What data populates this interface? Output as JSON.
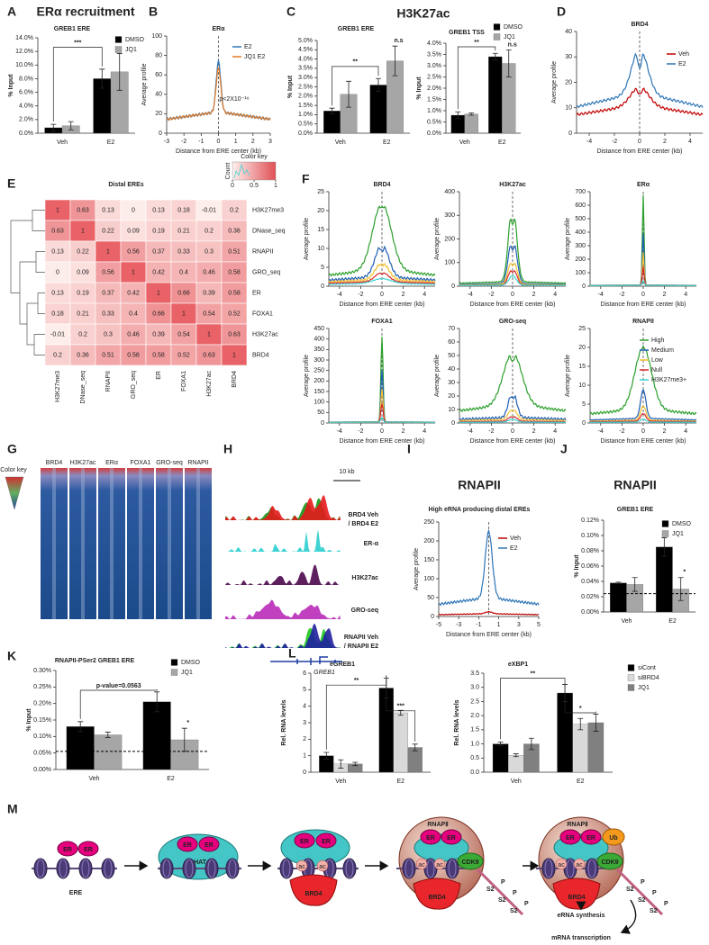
{
  "panel_letters": [
    "A",
    "B",
    "C",
    "D",
    "E",
    "F",
    "G",
    "H",
    "I",
    "J",
    "K",
    "L",
    "M"
  ],
  "bar_charts": [
    {
      "heading": "ERα recruitment",
      "subtitle": "GREB1 ERE",
      "ylabel": "% Input",
      "categories": [
        "Veh",
        "E2"
      ],
      "ylim": [
        0,
        14
      ],
      "yticks": [
        {
          "value": 0,
          "label": "0.0%"
        },
        {
          "value": 2,
          "label": "2.0%"
        },
        {
          "value": 4,
          "label": "4.0%"
        },
        {
          "value": 6,
          "label": "6.0%"
        },
        {
          "value": 8,
          "label": "8.0%"
        },
        {
          "value": 10,
          "label": "10.0%"
        },
        {
          "value": 12,
          "label": "12.0%"
        },
        {
          "value": 14,
          "label": "14.0%"
        }
      ],
      "series": [
        {
          "name": "DMSO",
          "color": "#000000",
          "values": [
            0.8,
            8.0
          ],
          "errors": [
            0.5,
            1.4
          ]
        },
        {
          "name": "JQ1",
          "color": "#a6a6a6",
          "values": [
            1.1,
            9.0
          ],
          "errors": [
            0.6,
            2.7
          ]
        }
      ],
      "annotations": [
        "***"
      ],
      "legend": "right"
    },
    {
      "heading": "H3K27ac",
      "subtitle": "GREB1 ERE",
      "ylabel": "% Input",
      "categories": [
        "Veh",
        "E2"
      ],
      "ylim": [
        0,
        5
      ],
      "yticks": [
        {
          "value": 0,
          "label": "0.0%"
        },
        {
          "value": 0.5,
          "label": "0.5%"
        },
        {
          "value": 1,
          "label": "1.0%"
        },
        {
          "value": 1.5,
          "label": "1.5%"
        },
        {
          "value": 2,
          "label": "2.0%"
        },
        {
          "value": 2.5,
          "label": "2.5%"
        },
        {
          "value": 3,
          "label": "3.0%"
        },
        {
          "value": 3.5,
          "label": "3.5%"
        },
        {
          "value": 4,
          "label": "4.0%"
        },
        {
          "value": 4.5,
          "label": "4.5%"
        },
        {
          "value": 5,
          "label": "5.0%"
        }
      ],
      "series": [
        {
          "name": "DMSO",
          "color": "#000000",
          "values": [
            1.2,
            2.6
          ],
          "errors": [
            0.15,
            0.35
          ]
        },
        {
          "name": "JQ1",
          "color": "#a6a6a6",
          "values": [
            2.1,
            3.9
          ],
          "errors": [
            0.7,
            0.8
          ]
        }
      ],
      "annotations": [
        "**",
        "n.s"
      ]
    },
    {
      "subtitle": "GREB1 TSS",
      "ylabel": "% Input",
      "categories": [
        "Veh",
        "E2"
      ],
      "ylim": [
        0,
        4
      ],
      "yticks": [
        {
          "value": 0,
          "label": "0.0%"
        },
        {
          "value": 0.5,
          "label": "0.5%"
        },
        {
          "value": 1,
          "label": "1.0%"
        },
        {
          "value": 1.5,
          "label": "1.5%"
        },
        {
          "value": 2,
          "label": "2.0%"
        },
        {
          "value": 2.5,
          "label": "2.5%"
        },
        {
          "value": 3,
          "label": "3.0%"
        },
        {
          "value": 3.5,
          "label": "3.5%"
        },
        {
          "value": 4,
          "label": "4.0%"
        }
      ],
      "series": [
        {
          "name": "DMSO",
          "color": "#000000",
          "values": [
            0.8,
            3.4
          ],
          "errors": [
            0.15,
            0.15
          ]
        },
        {
          "name": "JQ1",
          "color": "#a6a6a6",
          "values": [
            0.85,
            3.1
          ],
          "errors": [
            0.05,
            0.6
          ]
        }
      ],
      "annotations": [
        "**",
        "n.s"
      ],
      "legend": "right"
    },
    {
      "heading": "RNAPII",
      "subtitle": "GREB1 ERE",
      "ylabel": "% Input",
      "categories": [
        "Veh",
        "E2"
      ],
      "ylim": [
        0,
        0.12
      ],
      "yticks": [
        {
          "value": 0,
          "label": "0.00%"
        },
        {
          "value": 0.02,
          "label": "0.02%"
        },
        {
          "value": 0.04,
          "label": "0.04%"
        },
        {
          "value": 0.06,
          "label": "0.06%"
        },
        {
          "value": 0.08,
          "label": "0.08%"
        },
        {
          "value": 0.1,
          "label": "0.10%"
        },
        {
          "value": 0.12,
          "label": "0.12%"
        }
      ],
      "series": [
        {
          "name": "DMSO",
          "color": "#000000",
          "values": [
            0.038,
            0.085
          ],
          "errors": [
            0.001,
            0.012
          ]
        },
        {
          "name": "JQ1",
          "color": "#a6a6a6",
          "values": [
            0.036,
            0.03
          ],
          "errors": [
            0.009,
            0.015
          ]
        }
      ],
      "baseline": 0.024,
      "annotations": [
        "*"
      ],
      "legend": "right"
    },
    {
      "subtitle": "RNAPII-PSer2 GREB1 ERE",
      "ylabel": "% Input",
      "categories": [
        "Veh",
        "E2"
      ],
      "ylim": [
        0,
        0.3
      ],
      "yticks": [
        {
          "value": 0,
          "label": "0.00%"
        },
        {
          "value": 0.05,
          "label": "0.05%"
        },
        {
          "value": 0.1,
          "label": "0.10%"
        },
        {
          "value": 0.15,
          "label": "0.15%"
        },
        {
          "value": 0.2,
          "label": "0.20%"
        },
        {
          "value": 0.25,
          "label": "0.25%"
        },
        {
          "value": 0.3,
          "label": "0.30%"
        }
      ],
      "series": [
        {
          "name": "DMSO",
          "color": "#000000",
          "values": [
            0.13,
            0.205
          ],
          "errors": [
            0.015,
            0.03
          ]
        },
        {
          "name": "JQ1",
          "color": "#a6a6a6",
          "values": [
            0.105,
            0.09
          ],
          "errors": [
            0.008,
            0.035
          ]
        }
      ],
      "baseline": 0.055,
      "annotations": [
        "p-value=0.0563",
        "*"
      ],
      "legend": "right"
    },
    {
      "subtitle": "eGREB1",
      "ylabel": "Rel. RNA levels",
      "categories": [
        "Veh",
        "E2"
      ],
      "ylim": [
        0,
        6
      ],
      "yticks": [
        0,
        1,
        2,
        3,
        4,
        5,
        6
      ],
      "series": [
        {
          "name": "siCont",
          "color": "#000000",
          "values": [
            1.0,
            5.1
          ],
          "errors": [
            0.2,
            0.6
          ]
        },
        {
          "name": "siBRD4",
          "color": "#d9d9d9",
          "values": [
            0.5,
            3.6
          ],
          "errors": [
            0.25,
            0.15
          ]
        },
        {
          "name": "JQ1",
          "color": "#808080",
          "values": [
            0.5,
            1.5
          ],
          "errors": [
            0.1,
            0.2
          ]
        }
      ],
      "annotations": [
        "**",
        "***"
      ]
    },
    {
      "subtitle": "eXBP1",
      "ylabel": "Rel. RNA levels",
      "categories": [
        "Veh",
        "E2"
      ],
      "ylim": [
        0,
        3.5
      ],
      "yticks": [
        {
          "value": 0,
          "label": "0.0"
        },
        {
          "value": 0.5,
          "label": "0.5"
        },
        {
          "value": 1,
          "label": "1.0"
        },
        {
          "value": 1.5,
          "label": "1.5"
        },
        {
          "value": 2,
          "label": "2.0"
        },
        {
          "value": 2.5,
          "label": "2.5"
        },
        {
          "value": 3,
          "label": "3.0"
        },
        {
          "value": 3.5,
          "label": "3.5"
        }
      ],
      "series": [
        {
          "name": "siCont",
          "color": "#000000",
          "values": [
            1.0,
            2.8
          ],
          "errors": [
            0.07,
            0.3
          ]
        },
        {
          "name": "siBRD4",
          "color": "#d9d9d9",
          "values": [
            0.6,
            1.7
          ],
          "errors": [
            0.05,
            0.2
          ]
        },
        {
          "name": "JQ1",
          "color": "#808080",
          "values": [
            1.0,
            1.75
          ],
          "errors": [
            0.2,
            0.3
          ]
        }
      ],
      "annotations": [
        "**",
        "*"
      ],
      "legend": "right"
    }
  ],
  "profiles": [
    {
      "title": "ERα",
      "ylabel": "Average profile",
      "xlabel": "Distance from ERE center (kb)",
      "xlim": [
        -3,
        3
      ],
      "xticks": [
        -3,
        -2,
        -1,
        0,
        1,
        2,
        3
      ],
      "ylim": [
        0,
        100
      ],
      "yticks": [
        0,
        20,
        40,
        60,
        80,
        100
      ],
      "series": [
        {
          "name": "E2",
          "color": "#2e75b6"
        },
        {
          "name": "JQ1 E2",
          "color": "#e07b28"
        }
      ],
      "annotation": "p<2X10⁻¹⁶",
      "legend": "right"
    },
    {
      "title": "BRD4",
      "ylabel": "Average profile",
      "xlabel": "Distance from ERE center (kb)",
      "xlim": [
        -5,
        5
      ],
      "xticks": [
        -4,
        -2,
        0,
        2,
        4
      ],
      "ylim": [
        0,
        40
      ],
      "yticks": [
        0,
        10,
        20,
        30,
        40
      ],
      "series": [
        {
          "name": "Veh",
          "color": "#c00000"
        },
        {
          "name": "E2",
          "color": "#2e75b6"
        }
      ],
      "legend": "right"
    },
    {
      "title": "BRD4",
      "ylabel": "Average profile",
      "xlabel": "Distance from ERE center (kb)",
      "xlim": [
        -5,
        5
      ],
      "xticks": [
        -4,
        -2,
        0,
        2,
        4
      ],
      "ylim": [
        0,
        25
      ],
      "yticks": [
        0,
        5,
        10,
        15,
        20,
        25
      ]
    },
    {
      "title": "H3K27ac",
      "ylabel": "Average profile",
      "xlabel": "Distance from ERE center (kb)",
      "xlim": [
        -5,
        5
      ],
      "xticks": [
        -4,
        -2,
        0,
        2,
        4
      ],
      "ylim": [
        0,
        400
      ],
      "yticks": [
        0,
        100,
        200,
        300,
        400
      ]
    },
    {
      "title": "ERα",
      "ylabel": "Average profile",
      "xlabel": "Distance from ERE center (kb)",
      "xlim": [
        -5,
        5
      ],
      "xticks": [
        -4,
        -2,
        0,
        2,
        4
      ],
      "ylim": [
        0,
        700
      ],
      "yticks": [
        0,
        100,
        200,
        300,
        400,
        500,
        600,
        700
      ]
    },
    {
      "title": "FOXA1",
      "ylabel": "Average profile",
      "xlabel": "Distance from ERE center (kb)",
      "xlim": [
        -5,
        5
      ],
      "xticks": [
        -4,
        -2,
        0,
        2,
        4
      ],
      "ylim": [
        0,
        450
      ],
      "yticks": [
        0,
        50,
        100,
        150,
        200,
        250,
        300,
        350,
        400,
        450
      ]
    },
    {
      "title": "GRO-seq",
      "ylabel": "Average profile",
      "xlabel": "Distance from ERE center (kb)",
      "xlim": [
        -5,
        5
      ],
      "xticks": [
        -4,
        -2,
        0,
        2,
        4
      ],
      "ylim": [
        0,
        70
      ],
      "yticks": [
        0,
        10,
        20,
        30,
        40,
        50,
        60,
        70
      ]
    },
    {
      "title": "RNAPII",
      "ylabel": "Average profile",
      "xlabel": "Distance from ERE center (kb)",
      "xlim": [
        -5,
        5
      ],
      "xticks": [
        -4,
        -2,
        0,
        2,
        4
      ],
      "ylim": [
        0,
        25
      ],
      "yticks": [
        0,
        5,
        10,
        15,
        20,
        25
      ],
      "series": [
        {
          "name": "High",
          "color": "#2ca02c"
        },
        {
          "name": "Medium",
          "color": "#1f5fb4"
        },
        {
          "name": "Low",
          "color": "#f2c12e"
        },
        {
          "name": "Null",
          "color": "#d62728"
        },
        {
          "name": "H3K27me3+",
          "color": "#3fd3d3"
        }
      ],
      "legend": "right"
    },
    {
      "heading": "RNAPII",
      "title": "High eRNA producing distal EREs",
      "ylabel": "Average profile",
      "xlabel": "Distance from ERE center (kb)",
      "xlim": [
        -5,
        5
      ],
      "xticks": [
        -5,
        -3,
        -1,
        1,
        3,
        5
      ],
      "ylim": [
        0,
        250
      ],
      "yticks": [
        0,
        50,
        100,
        150,
        200,
        250
      ],
      "series": [
        {
          "name": "Veh",
          "color": "#c00000"
        },
        {
          "name": "E2",
          "color": "#2e75b6"
        }
      ],
      "legend": "right"
    }
  ],
  "heatmap": {
    "title": "Distal EREs",
    "labels": [
      "H3K27me3",
      "DNase_seq",
      "RNAPII",
      "GRO_seq",
      "ER",
      "FOXA1",
      "H3K27ac",
      "BRD4"
    ],
    "matrix": [
      [
        1,
        0.63,
        0.13,
        0,
        0.13,
        0.18,
        -0.01,
        0.2
      ],
      [
        0.63,
        1,
        0.22,
        0.09,
        0.19,
        0.21,
        0.2,
        0.36
      ],
      [
        0.13,
        0.22,
        1,
        0.56,
        0.37,
        0.33,
        0.3,
        0.51
      ],
      [
        0,
        0.09,
        0.56,
        1,
        0.42,
        0.4,
        0.46,
        0.58
      ],
      [
        0.13,
        0.19,
        0.37,
        0.42,
        1,
        0.66,
        0.39,
        0.58
      ],
      [
        0.18,
        0.21,
        0.33,
        0.4,
        0.66,
        1,
        0.54,
        0.52
      ],
      [
        -0.01,
        0.2,
        0.3,
        0.46,
        0.39,
        0.54,
        1,
        0.63
      ],
      [
        0.2,
        0.36,
        0.51,
        0.58,
        0.58,
        0.52,
        0.63,
        1
      ]
    ],
    "color_key": {
      "title": "Color key",
      "ylabel": "Count",
      "ticks": [
        0,
        0.5,
        1
      ]
    }
  },
  "panel_g": {
    "columns": [
      "BRD4",
      "H3K27ac",
      "ERα",
      "FOXA1",
      "GRO-seq",
      "RNAPII"
    ],
    "color_key": "Color key"
  },
  "panel_h": {
    "scale": "10 kb",
    "gene": "GREB1",
    "tracks": [
      {
        "label": "BRD4 Veh",
        "color": "#2ca02c"
      },
      {
        "label": "/ BRD4 E2",
        "color": "#e31a1c"
      },
      {
        "label": "ER-α",
        "color": "#3fd3d3"
      },
      {
        "label": "H3K27ac",
        "color": "#5e1f5e"
      },
      {
        "label": "GRO-seq",
        "color": "#c040c0"
      },
      {
        "label": "RNAPII Veh",
        "color": "#33cc33"
      },
      {
        "label": "/ RNAPII E2",
        "color": "#1f1f9f"
      }
    ]
  },
  "panel_m": {
    "ere": "ERE",
    "er": "ER",
    "hat": "HAT",
    "brd4": "BRD4",
    "ac": "ac",
    "cdk9": "CDK9",
    "ub": "Ub",
    "rnap": "RNAPⅡ",
    "s2": "S2",
    "p": "P",
    "erna": "eRNA synthesis",
    "mrna": "mRNA transcription"
  }
}
